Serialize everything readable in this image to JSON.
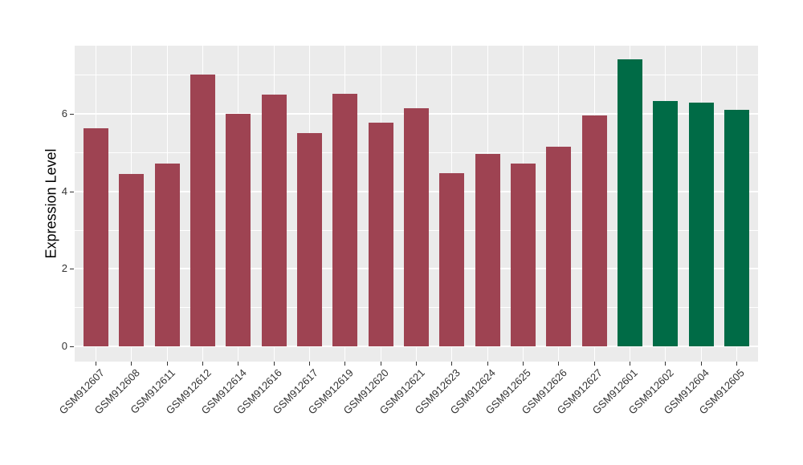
{
  "chart_data": {
    "type": "bar",
    "title": "",
    "xlabel": "",
    "ylabel": "Expression Level",
    "categories": [
      "GSM912607",
      "GSM912608",
      "GSM912611",
      "GSM912612",
      "GSM912614",
      "GSM912616",
      "GSM912617",
      "GSM912619",
      "GSM912620",
      "GSM912621",
      "GSM912623",
      "GSM912624",
      "GSM912625",
      "GSM912626",
      "GSM912627",
      "GSM912601",
      "GSM912602",
      "GSM912604",
      "GSM912605"
    ],
    "values": [
      5.62,
      4.46,
      4.72,
      7.02,
      6.0,
      6.5,
      5.5,
      6.52,
      5.77,
      6.15,
      4.48,
      4.97,
      4.72,
      5.15,
      5.97,
      7.4,
      6.34,
      6.3,
      6.11
    ],
    "groups": [
      "group_a",
      "group_a",
      "group_a",
      "group_a",
      "group_a",
      "group_a",
      "group_a",
      "group_a",
      "group_a",
      "group_a",
      "group_a",
      "group_a",
      "group_a",
      "group_a",
      "group_a",
      "group_b",
      "group_b",
      "group_b",
      "group_b"
    ],
    "colors": {
      "group_a": "#9E4352",
      "group_b": "#006B46"
    },
    "yticks": [
      0,
      2,
      4,
      6
    ],
    "yticks_minor": [
      1,
      3,
      5,
      7
    ],
    "ylim": [
      -0.39,
      7.76
    ],
    "grid": true,
    "legend_position": "none",
    "panel_bg": "#EBEBEB",
    "grid_color": "#FFFFFF",
    "tick_color": "#333333"
  }
}
